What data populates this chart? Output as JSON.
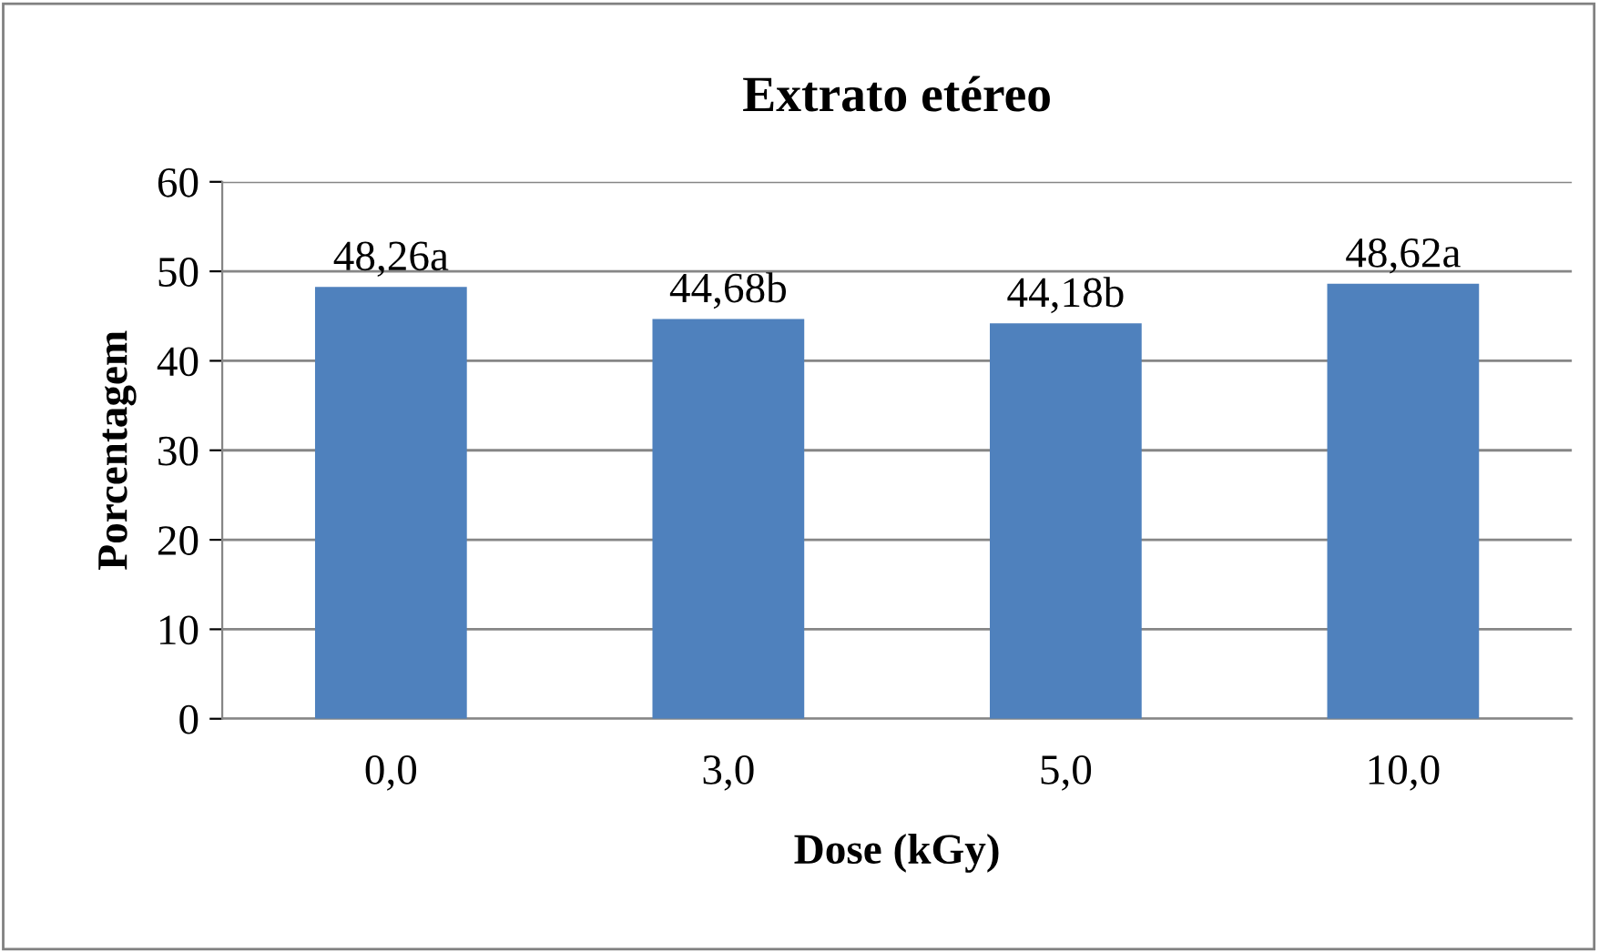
{
  "chart_data": {
    "type": "bar",
    "title": "Extrato etéreo",
    "xlabel": "Dose (kGy)",
    "ylabel": "Porcentagem",
    "categories": [
      "0,0",
      "3,0",
      "5,0",
      "10,0"
    ],
    "values": [
      48.26,
      44.68,
      44.18,
      48.62
    ],
    "value_labels": [
      "48,26a",
      "44,68b",
      "44,18b",
      "48,62a"
    ],
    "color": "#4f81bd",
    "ylim": [
      0,
      60
    ],
    "yticks": [
      0,
      10,
      20,
      30,
      40,
      50,
      60
    ],
    "grid": "y",
    "legend": false
  }
}
